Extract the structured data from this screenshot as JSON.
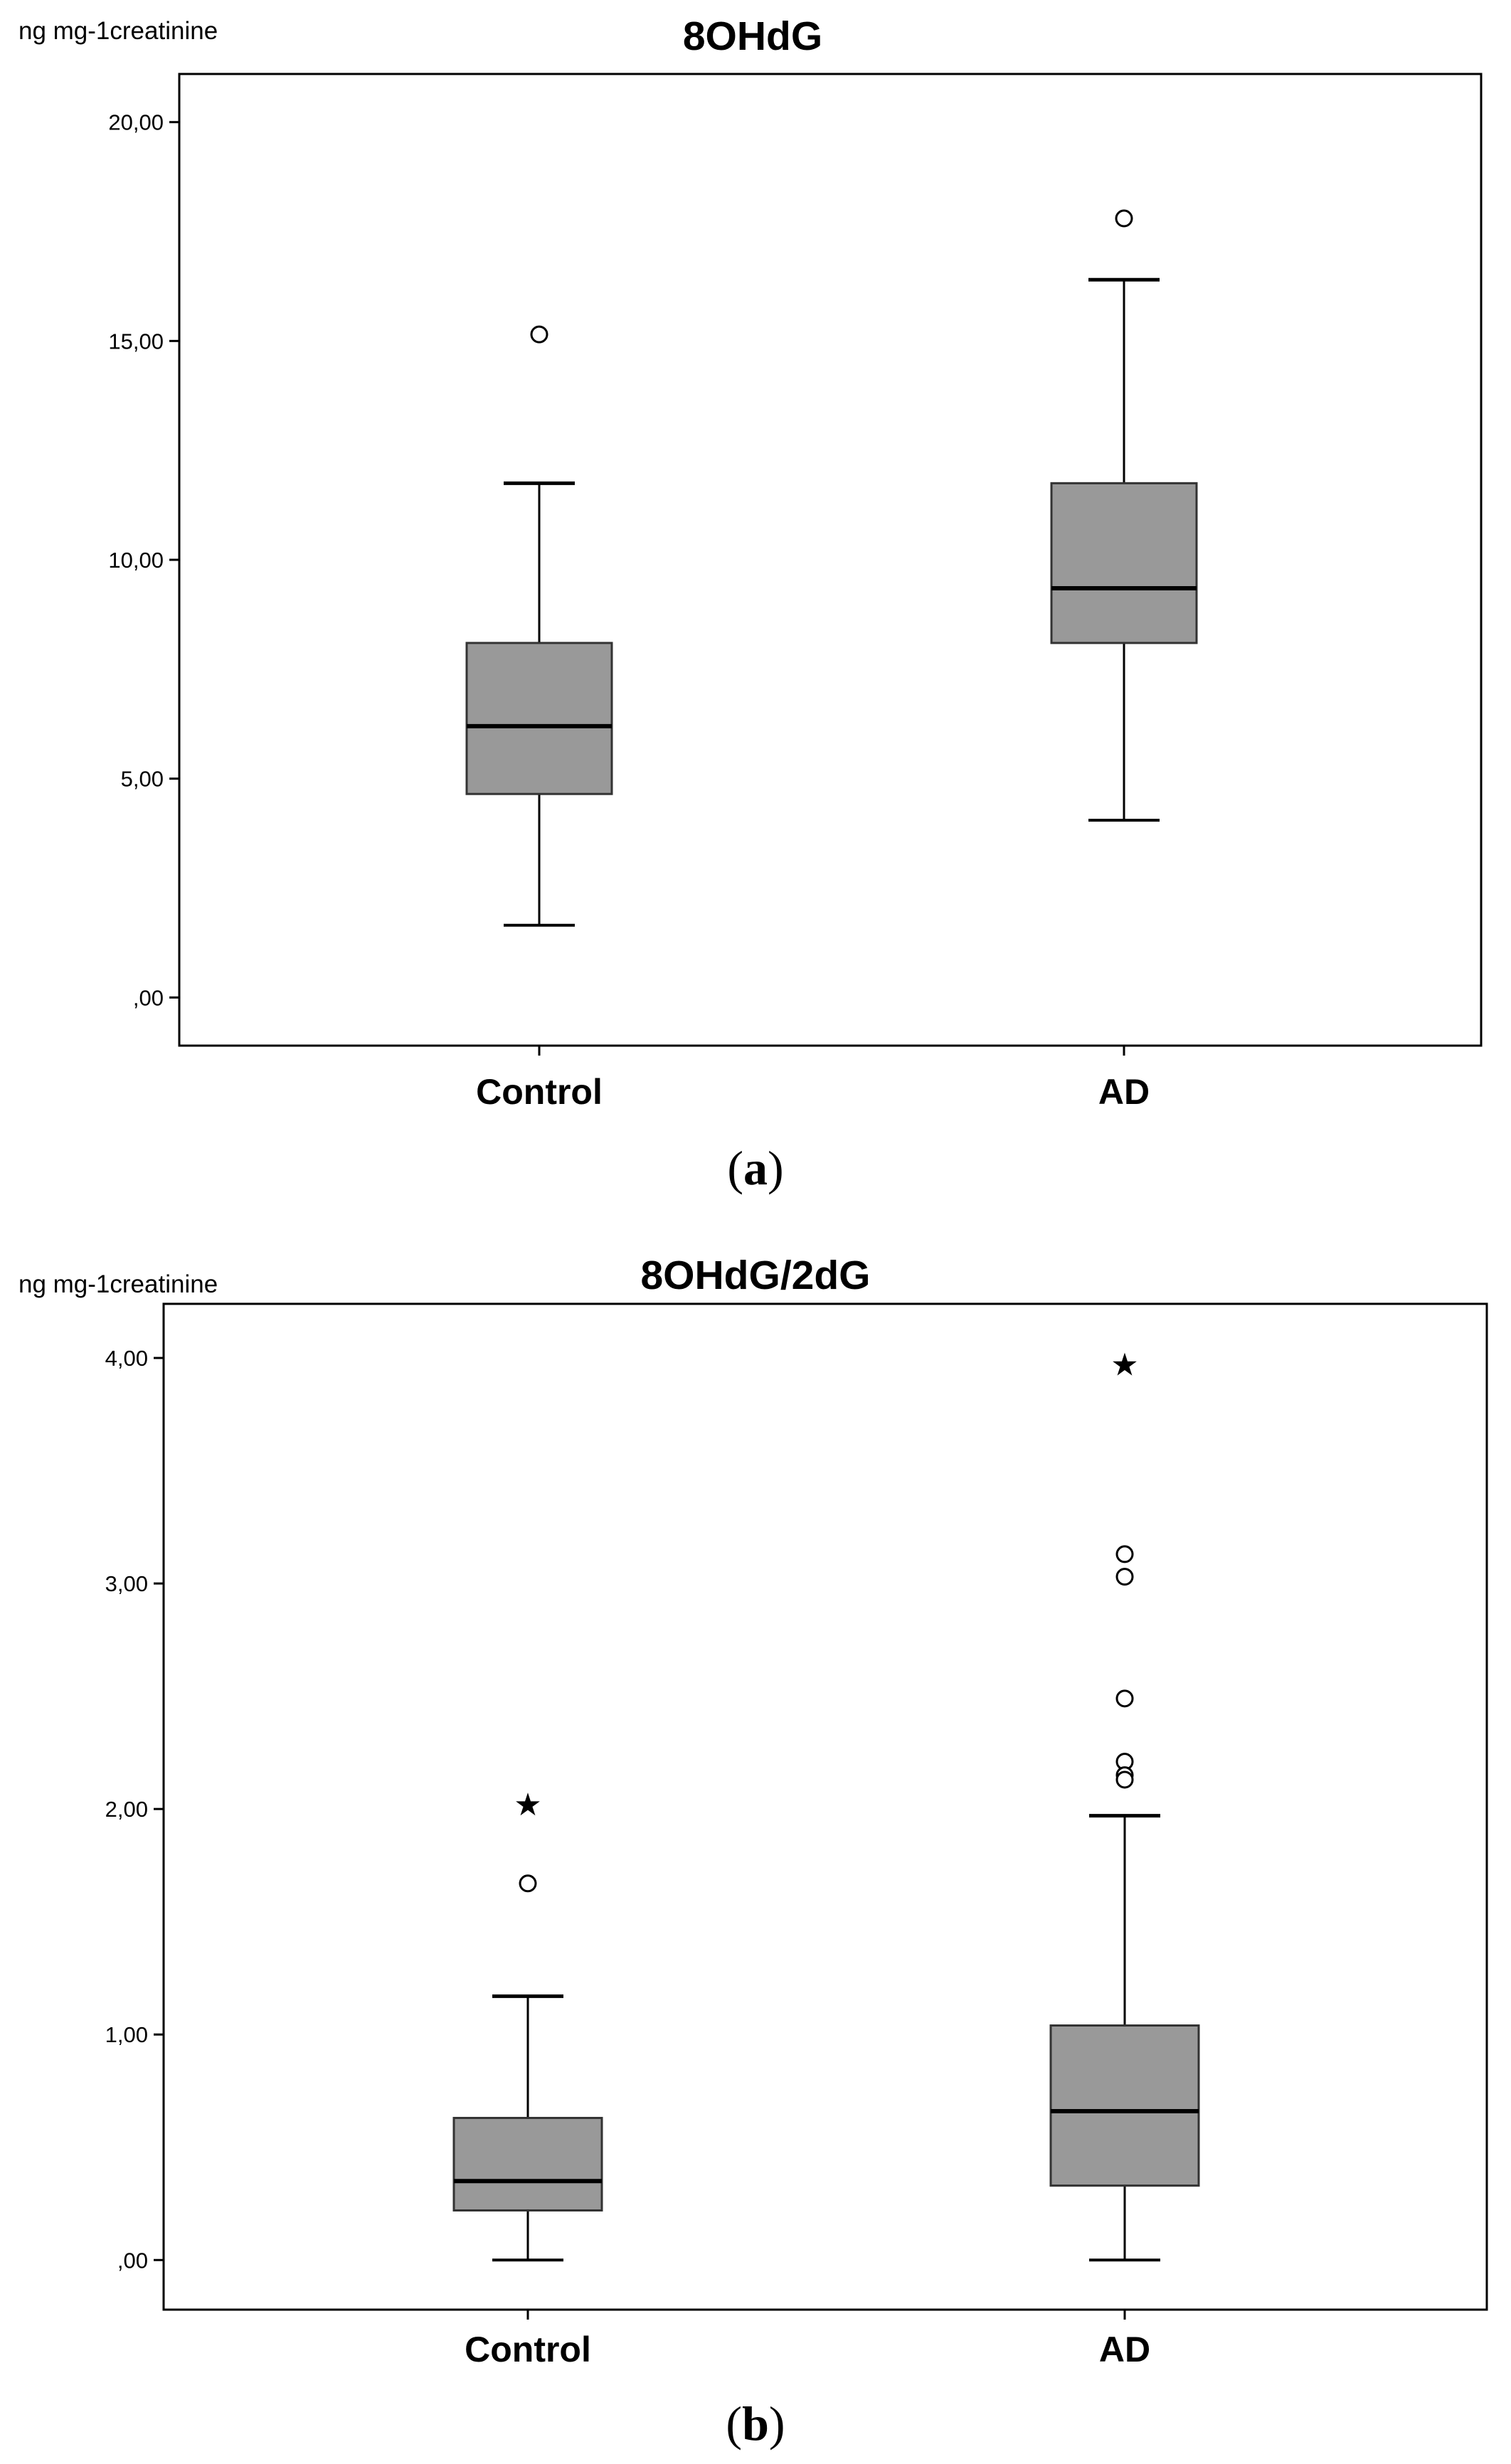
{
  "chart_data": [
    {
      "type": "box",
      "panel": "a",
      "title": "8OHdG",
      "ylabel": "ng mg-1creatinine",
      "ylim": [
        -1.1,
        21.1
      ],
      "yticks": [
        0,
        5,
        10,
        15,
        20
      ],
      "ytick_labels": [
        ",00",
        "5,00",
        "10,00",
        "15,00",
        "20,00"
      ],
      "categories": [
        "Control",
        "AD"
      ],
      "boxes": [
        {
          "name": "Control",
          "whisker_low": 1.65,
          "q1": 4.65,
          "median": 6.2,
          "q3": 8.1,
          "whisker_high": 11.75,
          "outliers": [
            15.15
          ],
          "extremes": []
        },
        {
          "name": "AD",
          "whisker_low": 4.05,
          "q1": 8.1,
          "median": 9.35,
          "q3": 11.75,
          "whisker_high": 16.4,
          "outliers": [
            17.8
          ],
          "extremes": []
        }
      ],
      "grid": false,
      "box_color": "#999999"
    },
    {
      "type": "box",
      "panel": "b",
      "title": "8OHdG/2dG",
      "ylabel": "ng mg-1creatinine",
      "ylim": [
        -0.22,
        4.24
      ],
      "yticks": [
        0,
        1,
        2,
        3,
        4
      ],
      "ytick_labels": [
        ",00",
        "1,00",
        "2,00",
        "3,00",
        "4,00"
      ],
      "categories": [
        "Control",
        "AD"
      ],
      "boxes": [
        {
          "name": "Control",
          "whisker_low": 0.0,
          "q1": 0.22,
          "median": 0.35,
          "q3": 0.63,
          "whisker_high": 1.17,
          "outliers": [
            1.67
          ],
          "extremes": [
            2.02
          ]
        },
        {
          "name": "AD",
          "whisker_low": 0.0,
          "q1": 0.33,
          "median": 0.66,
          "q3": 1.04,
          "whisker_high": 1.97,
          "outliers": [
            3.13,
            3.03,
            2.49,
            2.21,
            2.15,
            2.13
          ],
          "extremes": [
            3.97
          ]
        }
      ],
      "grid": false,
      "box_color": "#999999"
    }
  ],
  "panels": [
    {
      "letter": "a",
      "open": "(",
      "close": ")"
    },
    {
      "letter": "b",
      "open": "(",
      "close": ")"
    }
  ],
  "extreme_glyph": "★"
}
